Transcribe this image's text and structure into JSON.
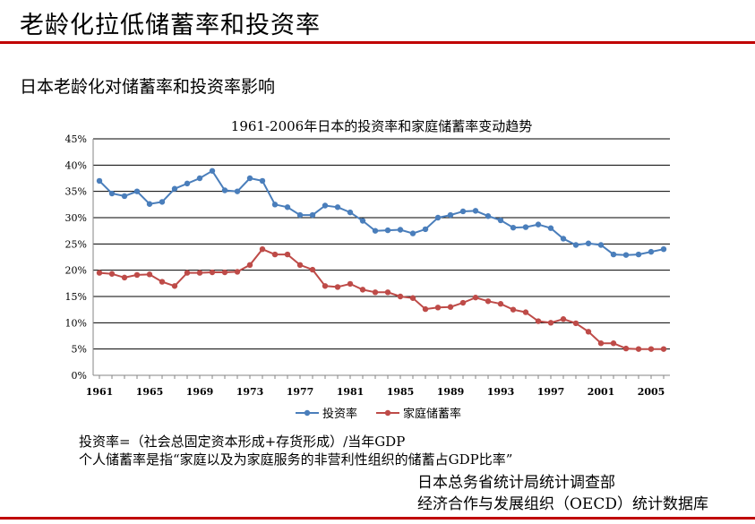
{
  "page": {
    "title": "老龄化拉低储蓄率和投资率",
    "subtitle": "日本老龄化对储蓄率和投资率影响"
  },
  "notes": {
    "line1": "投资率=（社会总固定资本形成+存货形成）/当年GDP",
    "line2": "个人储蓄率是指“家庭以及为家庭服务的非营利性组织的储蓄占GDP比率”"
  },
  "sources": {
    "line1": "日本总务省统计局统计调查部",
    "line2": "经济合作与发展组织（OECD）统计数据库"
  },
  "colors": {
    "accent": "#c00000",
    "investment": "#4a7ebb",
    "savings": "#be4b48"
  },
  "chart_data": {
    "type": "line",
    "title": "1961-2006年日本的投资率和家庭储蓄率变动趋势",
    "xlabel": "",
    "ylabel": "",
    "x": [
      1961,
      1962,
      1963,
      1964,
      1965,
      1966,
      1967,
      1968,
      1969,
      1970,
      1971,
      1972,
      1973,
      1974,
      1975,
      1976,
      1977,
      1978,
      1979,
      1980,
      1981,
      1982,
      1983,
      1984,
      1985,
      1986,
      1987,
      1988,
      1989,
      1990,
      1991,
      1992,
      1993,
      1994,
      1995,
      1996,
      1997,
      1998,
      1999,
      2000,
      2001,
      2002,
      2003,
      2004,
      2005,
      2006
    ],
    "xticks": [
      "1961",
      "1965",
      "1969",
      "1973",
      "1977",
      "1981",
      "1985",
      "1989",
      "1993",
      "1997",
      "2001",
      "2005"
    ],
    "xlim": [
      1961,
      2006
    ],
    "ylim": [
      0,
      45
    ],
    "yticks": [
      "0%",
      "5%",
      "10%",
      "15%",
      "20%",
      "25%",
      "30%",
      "35%",
      "40%",
      "45%"
    ],
    "grid": true,
    "legend_position": "bottom",
    "series": [
      {
        "name": "投资率",
        "color": "#4a7ebb",
        "values": [
          37,
          34.6,
          34.1,
          35,
          32.6,
          33,
          35.5,
          36.5,
          37.5,
          38.9,
          35.2,
          35,
          37.5,
          37,
          32.5,
          32,
          30.5,
          30.5,
          32.3,
          32,
          31,
          29.4,
          27.5,
          27.6,
          27.7,
          27,
          27.8,
          30,
          30.5,
          31.2,
          31.3,
          30.3,
          29.5,
          28.1,
          28.2,
          28.7,
          28,
          26,
          24.8,
          25.1,
          24.8,
          23,
          22.9,
          23,
          23.5,
          24
        ]
      },
      {
        "name": "家庭储蓄率",
        "color": "#be4b48",
        "values": [
          19.5,
          19.3,
          18.6,
          19.1,
          19.2,
          17.8,
          17,
          19.5,
          19.5,
          19.6,
          19.6,
          19.7,
          21,
          24,
          23,
          23,
          21,
          20.1,
          17,
          16.8,
          17.4,
          16.3,
          15.8,
          15.8,
          15,
          14.7,
          12.6,
          12.9,
          13,
          13.8,
          14.8,
          14.1,
          13.6,
          12.5,
          12,
          10.3,
          10,
          10.7,
          9.9,
          8.3,
          6.1,
          6.1,
          5.1,
          5,
          5,
          5
        ]
      }
    ]
  }
}
